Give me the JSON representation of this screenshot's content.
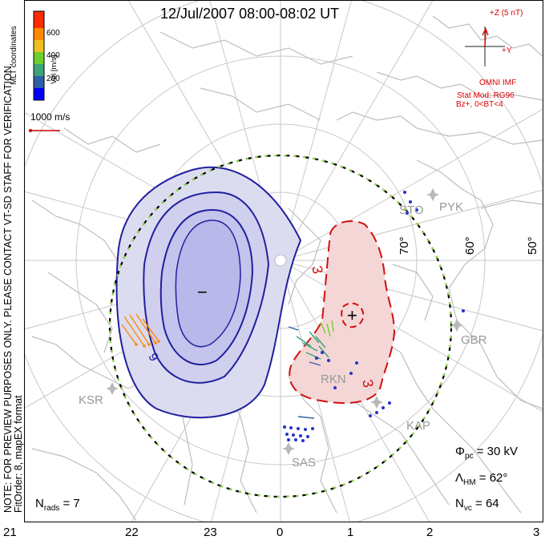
{
  "title": "12/Jul/2007 08:00-08:02 UT",
  "side_note": {
    "line1": "NOTE: FOR PREVIEW PURPOSES ONLY. PLEASE CONTACT VT-SD STAFF FOR VERIFICATION.",
    "line2": "FitOrder: 8, mapEX format"
  },
  "colorbar": {
    "coordinates_label": "MLT coordinates",
    "axis_label": "Vel [m/s]",
    "ticks": [
      "600",
      "400",
      "200"
    ],
    "colors": [
      "#0000ff",
      "#2e5fa8",
      "#3aa37a",
      "#6ccf2e",
      "#f0c020",
      "#ff8a00",
      "#ff2a00"
    ]
  },
  "scale_vector": {
    "label": "1000 m/s",
    "color": "#cc0000"
  },
  "imf": {
    "z_label": "+Z (5 nT)",
    "y_label": "+Y",
    "source": "OMNI IMF",
    "model": "Stat Mod: RG96",
    "condition": "Bz+, 0<BT<4",
    "color": "#d00000"
  },
  "latitude_labels": [
    "70°",
    "60°",
    "50°"
  ],
  "stations": [
    "STO",
    "PYK",
    "GBR",
    "RKN",
    "KAP",
    "SAS",
    "KSR"
  ],
  "contours": {
    "negative_symbol": "−",
    "positive_symbol": "+",
    "neg_label": "9",
    "pos_label_1": "3",
    "pos_label_2": "3"
  },
  "stats": {
    "phi_pc": {
      "symbol": "Φ",
      "sub": "pc",
      "value": "=  30 kV"
    },
    "lambda_hm": {
      "symbol": "Λ",
      "sub": "HM",
      "value": "=  62°"
    },
    "n_vc": {
      "symbol": "N",
      "sub": "vc",
      "value": "=  64"
    },
    "n_rads": {
      "symbol": "N",
      "sub": "rads",
      "value": "=  7"
    }
  },
  "time_ticks": [
    "21",
    "22",
    "23",
    "0",
    "1",
    "2",
    "3"
  ]
}
